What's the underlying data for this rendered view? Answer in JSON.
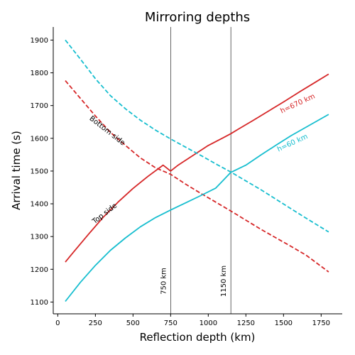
{
  "chart_data": {
    "type": "line",
    "title": "Mirroring depths",
    "xlabel": "Reflection depth (km)",
    "ylabel": "Arrival time (s)",
    "xlim": [
      -30,
      1890
    ],
    "ylim": [
      1064,
      1940
    ],
    "xticks": [
      0,
      250,
      500,
      750,
      1000,
      1250,
      1500,
      1750
    ],
    "yticks": [
      1100,
      1200,
      1300,
      1400,
      1500,
      1600,
      1700,
      1800,
      1900
    ],
    "grid": false,
    "legend": "none",
    "series": [
      {
        "color": "#d62728",
        "dash": "solid",
        "x": [
          50,
          100,
          200,
          300,
          400,
          500,
          600,
          700,
          750,
          800,
          900,
          1000,
          1100,
          1150,
          1200,
          1300,
          1400,
          1500,
          1600,
          1700,
          1800
        ],
        "y": [
          1222,
          1250,
          1305,
          1358,
          1405,
          1447,
          1484,
          1518,
          1500,
          1518,
          1548,
          1578,
          1602,
          1614,
          1628,
          1655,
          1683,
          1711,
          1740,
          1768,
          1796
        ]
      },
      {
        "color": "#d62728",
        "dash": "dashed",
        "x": [
          50,
          150,
          250,
          350,
          450,
          550,
          650,
          750,
          850,
          950,
          1050,
          1150,
          1250,
          1350,
          1450,
          1550,
          1650,
          1800
        ],
        "y": [
          1776,
          1722,
          1668,
          1618,
          1578,
          1540,
          1510,
          1490,
          1460,
          1432,
          1405,
          1378,
          1350,
          1322,
          1296,
          1270,
          1243,
          1192
        ]
      },
      {
        "color": "#17becf",
        "dash": "solid",
        "x": [
          50,
          150,
          250,
          350,
          450,
          550,
          650,
          750,
          850,
          950,
          1050,
          1150,
          1250,
          1350,
          1450,
          1550,
          1650,
          1800
        ],
        "y": [
          1102,
          1160,
          1212,
          1258,
          1296,
          1330,
          1358,
          1381,
          1403,
          1425,
          1448,
          1496,
          1518,
          1549,
          1579,
          1608,
          1634,
          1673
        ]
      },
      {
        "color": "#17becf",
        "dash": "dashed",
        "x": [
          50,
          150,
          250,
          350,
          450,
          550,
          650,
          750,
          850,
          950,
          1050,
          1150,
          1250,
          1350,
          1450,
          1550,
          1650,
          1800
        ],
        "y": [
          1900,
          1842,
          1782,
          1730,
          1690,
          1655,
          1625,
          1598,
          1573,
          1548,
          1522,
          1497,
          1470,
          1443,
          1414,
          1385,
          1356,
          1314
        ]
      }
    ],
    "vlines": [
      {
        "x": 750,
        "label": "750 km"
      },
      {
        "x": 1150,
        "label": "1150 km"
      }
    ],
    "annotations": [
      {
        "text": "h=670 km",
        "x": 1600,
        "y": 1700,
        "color": "#d62728",
        "rotate": -25
      },
      {
        "text": "h=60 km",
        "x": 1565,
        "y": 1580,
        "color": "#17becf",
        "rotate": -25
      },
      {
        "text": "Bottom side",
        "x": 320,
        "y": 1618,
        "color": "#000000",
        "rotate": 38
      },
      {
        "text": "Top side",
        "x": 320,
        "y": 1365,
        "color": "#000000",
        "rotate": -38
      }
    ]
  }
}
